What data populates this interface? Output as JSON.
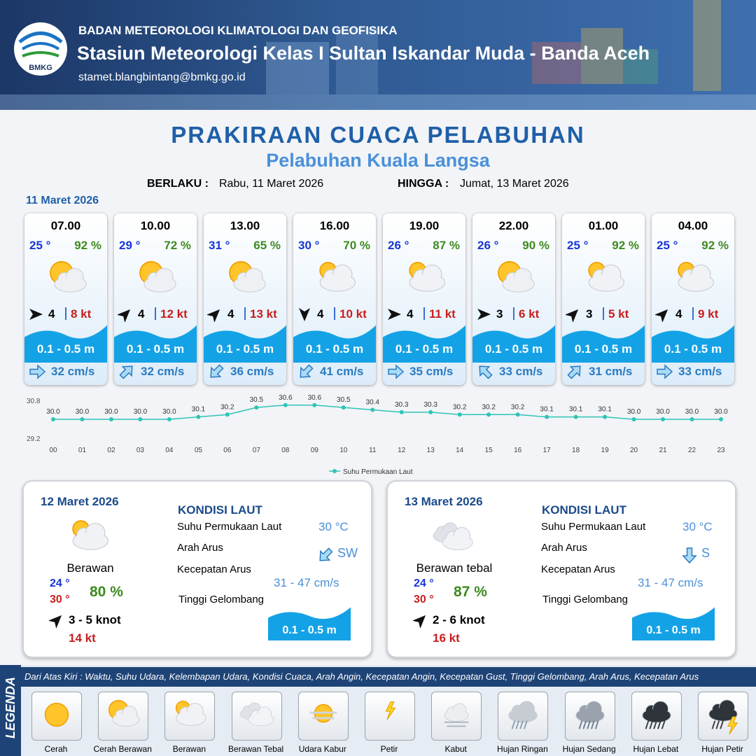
{
  "header": {
    "org": "BADAN METEOROLOGI KLIMATOLOGI DAN GEOFISIKA",
    "station": "Stasiun Meteorologi Kelas I Sultan Iskandar Muda - Banda Aceh",
    "email": "stamet.blangbintang@bmkg.go.id",
    "logo": "BMKG"
  },
  "title": "PRAKIRAAN CUACA PELABUHAN",
  "subtitle": "Pelabuhan Kuala Langsa",
  "validity": {
    "from_label": "BERLAKU :",
    "from": "Rabu, 11 Maret 2026",
    "to_label": "HINGGA :",
    "to": "Jumat, 13 Maret 2026"
  },
  "day1": {
    "date": "11 Maret 2026",
    "cards": [
      {
        "time": "07.00",
        "temp": "25 °",
        "humidity": "92 %",
        "icon": 1,
        "wind_deg": 90,
        "wind": "4",
        "gust": "8 kt",
        "wave": "0.1 - 0.5 m",
        "current_deg": 90,
        "current": "32 cm/s"
      },
      {
        "time": "10.00",
        "temp": "29 °",
        "humidity": "72 %",
        "icon": 1,
        "wind_deg": 45,
        "wind": "4",
        "gust": "12 kt",
        "wave": "0.1 - 0.5 m",
        "current_deg": 45,
        "current": "32 cm/s"
      },
      {
        "time": "13.00",
        "temp": "31 °",
        "humidity": "65 %",
        "icon": 1,
        "wind_deg": 45,
        "wind": "4",
        "gust": "13 kt",
        "wave": "0.1 - 0.5 m",
        "current_deg": 225,
        "current": "36 cm/s"
      },
      {
        "time": "16.00",
        "temp": "30 °",
        "humidity": "70 %",
        "icon": 2,
        "wind_deg": 180,
        "wind": "4",
        "gust": "10 kt",
        "wave": "0.1 - 0.5 m",
        "current_deg": 225,
        "current": "41 cm/s"
      },
      {
        "time": "19.00",
        "temp": "26 °",
        "humidity": "87 %",
        "icon": 2,
        "wind_deg": 90,
        "wind": "4",
        "gust": "11 kt",
        "wave": "0.1 - 0.5 m",
        "current_deg": 90,
        "current": "35 cm/s"
      },
      {
        "time": "22.00",
        "temp": "26 °",
        "humidity": "90 %",
        "icon": 1,
        "wind_deg": 90,
        "wind": "3",
        "gust": "6 kt",
        "wave": "0.1 - 0.5 m",
        "current_deg": 315,
        "current": "33 cm/s"
      },
      {
        "time": "01.00",
        "temp": "25 °",
        "humidity": "92 %",
        "icon": 2,
        "wind_deg": 45,
        "wind": "3",
        "gust": "5 kt",
        "wave": "0.1 - 0.5 m",
        "current_deg": 45,
        "current": "31 cm/s"
      },
      {
        "time": "04.00",
        "temp": "25 °",
        "humidity": "92 %",
        "icon": 2,
        "wind_deg": 45,
        "wind": "4",
        "gust": "9 kt",
        "wave": "0.1 - 0.5 m",
        "current_deg": 90,
        "current": "33 cm/s"
      }
    ]
  },
  "chart_data": {
    "type": "line",
    "categories": [
      "00",
      "01",
      "02",
      "03",
      "04",
      "05",
      "06",
      "07",
      "08",
      "09",
      "10",
      "11",
      "12",
      "13",
      "14",
      "15",
      "16",
      "17",
      "18",
      "19",
      "20",
      "21",
      "22",
      "23"
    ],
    "series": [
      {
        "name": "Suhu Permukaan Laut",
        "color": "#2ec4b6",
        "values": [
          30.0,
          30.0,
          30.0,
          30.0,
          30.0,
          30.1,
          30.2,
          30.5,
          30.6,
          30.6,
          30.5,
          30.4,
          30.3,
          30.3,
          30.2,
          30.2,
          30.2,
          30.1,
          30.1,
          30.1,
          30.0,
          30.0,
          30.0,
          30.0
        ],
        "value_labels": [
          "30.0",
          "30.0",
          "30.0",
          "30.0",
          "30.0",
          "30.1",
          "30.2",
          "30.5",
          "30.6",
          "30.6",
          "30.5",
          "30.4",
          "30.3",
          "30.3",
          "30.2",
          "30.2",
          "30.2",
          "30.1",
          "30.1",
          "30.1",
          "30.0",
          "30.0",
          "30.0",
          "30.0"
        ]
      }
    ],
    "ylim": [
      29.2,
      30.8
    ],
    "yticks": [
      29.2,
      30.8
    ]
  },
  "days": [
    {
      "date": "12 Maret 2026",
      "icon": 2,
      "condition": "Berawan",
      "temp_min": "24 °",
      "temp_max": "30 °",
      "humidity": "80 %",
      "wind_deg": 45,
      "wind": "3 - 5 knot",
      "gust": "14 kt",
      "sea": {
        "title": "KONDISI LAUT",
        "sst_label": "Suhu Permukaan Laut",
        "sst": "30 °C",
        "dir_label": "Arah Arus",
        "dir_deg": 225,
        "dir": "SW",
        "speed_label": "Kecepatan Arus",
        "speed": "31 - 47 cm/s",
        "wave_label": "Tinggi Gelombang",
        "wave": "0.1 - 0.5 m"
      }
    },
    {
      "date": "13 Maret 2026",
      "icon": 3,
      "condition": "Berawan tebal",
      "temp_min": "24 °",
      "temp_max": "30 °",
      "humidity": "87 %",
      "wind_deg": 45,
      "wind": "2 - 6 knot",
      "gust": "16 kt",
      "sea": {
        "title": "KONDISI LAUT",
        "sst_label": "Suhu Permukaan Laut",
        "sst": "30 °C",
        "dir_label": "Arah Arus",
        "dir_deg": 180,
        "dir": "S",
        "speed_label": "Kecepatan Arus",
        "speed": "31 - 47 cm/s",
        "wave_label": "Tinggi Gelombang",
        "wave": "0.1 - 0.5 m"
      }
    }
  ],
  "legend": {
    "title": "LEGENDA",
    "note": "Dari Atas Kiri : Waktu, Suhu Udara, Kelembapan Udara, Kondisi Cuaca, Arah Angin, Kecepatan Angin, Kecepatan Gust, Tinggi Gelombang, Arah Arus, Kecepatan Arus",
    "items": [
      "Cerah",
      "Cerah Berawan",
      "Berawan",
      "Berawan Tebal",
      "Udara Kabur",
      "Petir",
      "Kabut",
      "Hujan Ringan",
      "Hujan Sedang",
      "Hujan Lebat",
      "Hujan Petir"
    ]
  }
}
